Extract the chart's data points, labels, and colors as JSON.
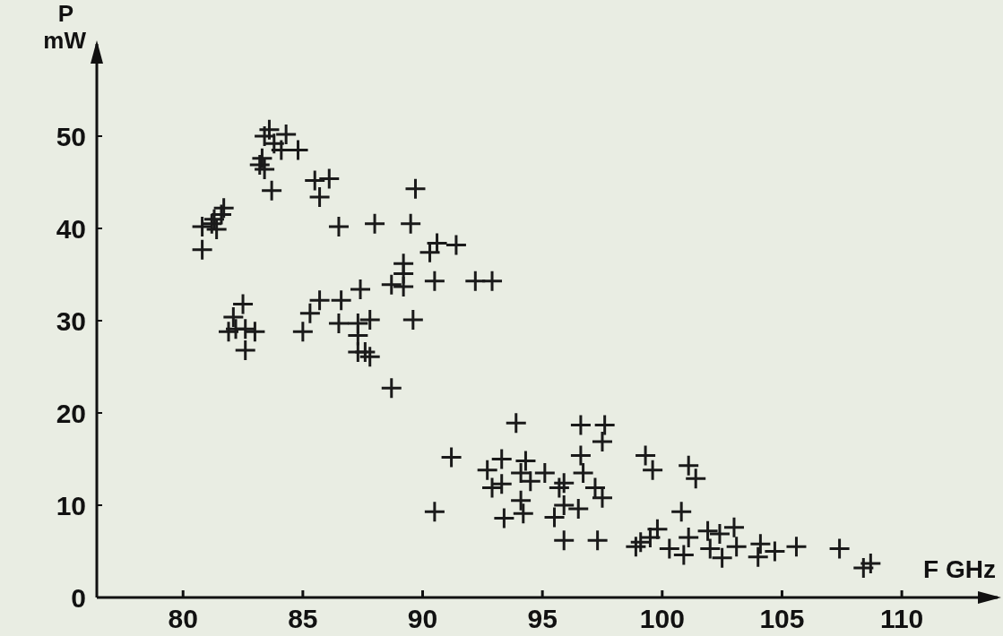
{
  "chart_data": {
    "type": "scatter",
    "xlabel": "F GHz",
    "ylabel": "P\nmW",
    "xlim": [
      76.4,
      114
    ],
    "ylim": [
      0,
      60
    ],
    "xticks": [
      80,
      85,
      90,
      95,
      100,
      105,
      110
    ],
    "yticks": [
      0,
      10,
      20,
      30,
      40,
      50
    ],
    "grid": false,
    "marker": "cross",
    "series": [
      {
        "color": "#1a1a1a",
        "x": [
          83.4,
          83.6,
          84.3,
          83.8,
          84.1,
          84.8,
          83.2,
          83.4,
          83.7,
          83.3,
          80.8,
          80.8,
          81.2,
          81.4,
          81.6,
          81.7,
          81.3,
          82.5,
          82.1,
          81.9,
          82.2,
          82.6,
          83.0,
          82.6,
          85.5,
          86.1,
          85.7,
          86.5,
          88.0,
          89.5,
          89.7,
          85.0,
          85.3,
          85.7,
          86.6,
          86.5,
          87.4,
          87.3,
          87.8,
          87.3,
          87.3,
          87.8,
          87.6,
          88.7,
          89.2,
          89.2,
          89.2,
          89.6,
          88.7,
          90.5,
          90.3,
          90.6,
          91.4,
          92.2,
          92.9,
          93.9,
          91.2,
          90.5,
          92.7,
          93.3,
          92.9,
          93.3,
          94.3,
          94.1,
          94.5,
          95.1,
          94.1,
          94.2,
          93.4,
          95.5,
          95.7,
          95.9,
          96.6,
          97.6,
          97.5,
          96.6,
          96.7,
          97.2,
          97.5,
          95.9,
          96.5,
          95.9,
          97.3,
          99.3,
          99.6,
          101.1,
          101.4,
          100.8,
          98.9,
          99.1,
          99.5,
          99.8,
          100.3,
          100.9,
          101.1,
          101.9,
          102.4,
          102.0,
          102.5,
          103.0,
          103.1,
          104.0,
          104.1,
          104.7,
          105.6,
          107.4,
          108.4,
          108.7
        ],
        "values": [
          50.0,
          50.7,
          50.2,
          49.2,
          48.5,
          48.5,
          46.9,
          46.4,
          44.1,
          47.6,
          37.7,
          40.2,
          40.5,
          39.9,
          41.5,
          42.2,
          41.0,
          31.8,
          30.4,
          28.8,
          29.1,
          29.1,
          28.8,
          26.8,
          45.2,
          45.4,
          43.4,
          40.2,
          40.5,
          40.5,
          44.3,
          28.8,
          30.8,
          32.2,
          32.2,
          29.7,
          33.4,
          29.7,
          30.1,
          28.4,
          26.6,
          26.1,
          26.6,
          33.9,
          33.7,
          36.2,
          35.1,
          30.1,
          22.7,
          34.3,
          37.4,
          38.4,
          38.2,
          34.3,
          34.3,
          18.9,
          15.2,
          9.3,
          13.8,
          15.0,
          11.9,
          12.3,
          14.8,
          13.5,
          12.6,
          13.5,
          10.5,
          9.1,
          8.6,
          8.7,
          11.9,
          12.4,
          18.7,
          18.7,
          16.9,
          15.4,
          13.5,
          11.9,
          10.8,
          10.0,
          9.6,
          6.2,
          6.2,
          15.4,
          13.8,
          14.3,
          12.9,
          9.3,
          5.5,
          6.0,
          6.5,
          7.4,
          5.3,
          4.6,
          6.5,
          7.2,
          6.9,
          5.3,
          4.3,
          7.6,
          5.5,
          4.4,
          5.8,
          5.0,
          5.5,
          5.3,
          3.2,
          3.7
        ]
      }
    ]
  }
}
